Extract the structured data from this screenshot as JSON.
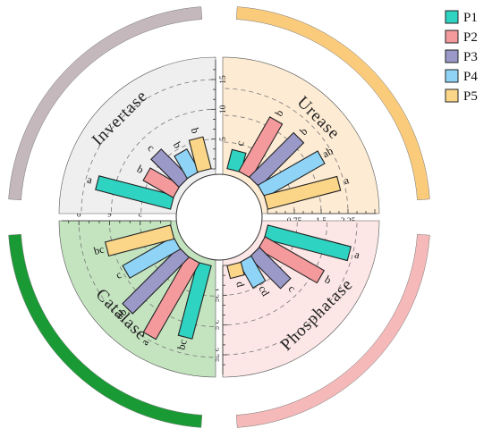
{
  "chart_data": {
    "type": "bar",
    "subtype": "radial-grouped-bar",
    "title": "",
    "legend": {
      "placement": "top-right",
      "entries": [
        "P1",
        "P2",
        "P3",
        "P4",
        "P5"
      ]
    },
    "series_colors": {
      "P1": "#2ed3c1",
      "P2": "#f49a9c",
      "P3": "#9b99c8",
      "P4": "#8fd4f6",
      "P5": "#fbd588"
    },
    "panels": [
      {
        "name": "Urease",
        "quadrant": "top-right",
        "bg_color": "#fdebd3",
        "ring_color": "#fbcb7c",
        "ticks": [
          "0",
          "0.75",
          "1.5",
          "2.25"
        ],
        "axis_max": 3.0,
        "values": {
          "P1": 0.55,
          "P2": 1.75,
          "P3": 1.75,
          "P4": 1.92,
          "P5": 2.1
        },
        "letters": {
          "P1": "c",
          "P2": "b",
          "P3": "b",
          "P4": "ab",
          "P5": "a"
        }
      },
      {
        "name": "Phosphatase",
        "quadrant": "bottom-right",
        "bg_color": "#fce6e6",
        "ring_color": "#f6b9b9",
        "ticks": [
          "0",
          "1.25",
          "2.5",
          "3.75"
        ],
        "axis_max": 4.5,
        "values": {
          "P1": 3.6,
          "P2": 2.85,
          "P3": 1.85,
          "P4": 1.2,
          "P5": 0.55
        },
        "letters": {
          "P1": "a",
          "P2": "b",
          "P3": "c",
          "P4": "cd",
          "P5": "d"
        }
      },
      {
        "name": "Catalase",
        "quadrant": "bottom-left",
        "bg_color": "#c4e4c0",
        "ring_color": "#1a9a35",
        "ticks": [
          "0",
          "3",
          "6",
          "9"
        ],
        "axis_max": 10.5,
        "values": {
          "P1": 7.4,
          "P2": 8.6,
          "P3": 7.8,
          "P4": 5.7,
          "P5": 6.6
        },
        "letters": {
          "P1": "bc",
          "P2": "a",
          "P3": "ab",
          "P4": "c",
          "P5": "bc"
        }
      },
      {
        "name": "Invertase",
        "quadrant": "top-left",
        "bg_color": "#efefef",
        "ring_color": "#c4b8bd",
        "ticks": [
          "0",
          "5",
          "10",
          "15"
        ],
        "axis_max": 18.0,
        "values": {
          "P1": 13.0,
          "P2": 5.8,
          "P3": 6.6,
          "P4": 4.3,
          "P5": 5.5
        },
        "letters": {
          "P1": "a",
          "P2": "b",
          "P3": "c",
          "P4": "b",
          "P5": "b"
        }
      }
    ]
  }
}
